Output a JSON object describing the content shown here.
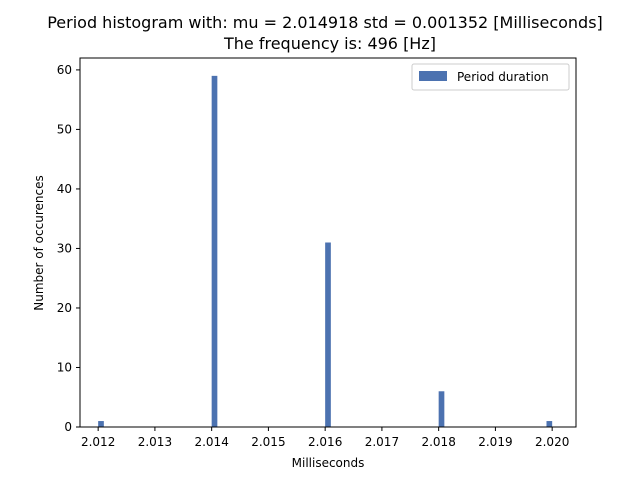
{
  "chart_data": {
    "type": "bar",
    "title_line1": "Period histogram with: mu = 2.014918  std = 0.001352 [Milliseconds]",
    "title_line2": "The frequency is: 496 [Hz]",
    "xlabel": "Milliseconds",
    "ylabel": "Number of occurences",
    "xlim": [
      2.01168,
      2.02042
    ],
    "ylim": [
      0,
      62
    ],
    "xticks": [
      "2.012",
      "2.013",
      "2.014",
      "2.015",
      "2.016",
      "2.017",
      "2.018",
      "2.019",
      "2.020"
    ],
    "yticks": [
      "0",
      "10",
      "20",
      "30",
      "40",
      "50",
      "60"
    ],
    "bin_width": 0.0001,
    "bars": [
      {
        "x": 2.01205,
        "value": 1
      },
      {
        "x": 2.01405,
        "value": 59
      },
      {
        "x": 2.01605,
        "value": 31
      },
      {
        "x": 2.01805,
        "value": 6
      },
      {
        "x": 2.01995,
        "value": 1
      }
    ],
    "legend": {
      "label": "Period duration",
      "position": "top-right"
    },
    "bar_color": "#4c72b0",
    "grid": false
  }
}
